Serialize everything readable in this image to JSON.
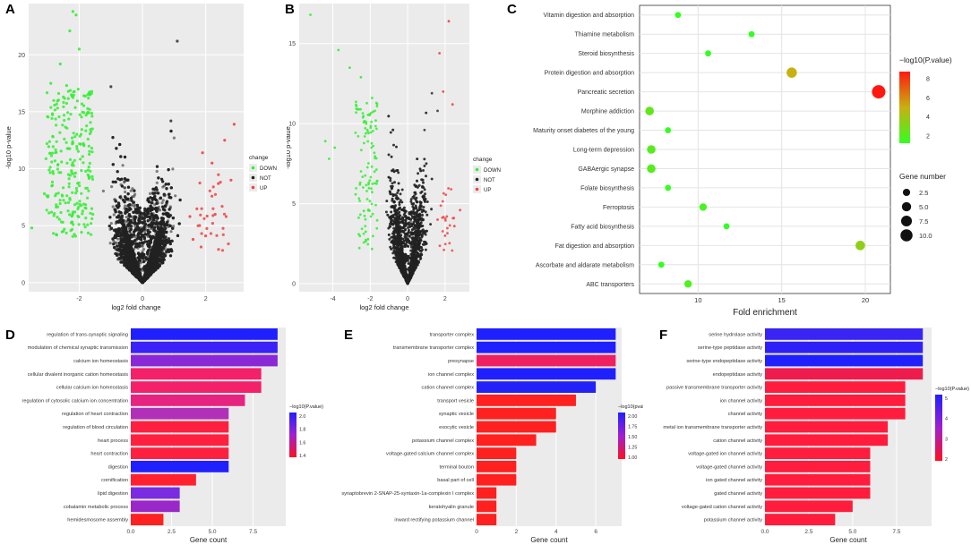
{
  "panels": {
    "A": "A",
    "B": "B",
    "C": "C",
    "D": "D",
    "E": "E",
    "F": "F"
  },
  "colors": {
    "down": "#33ee33",
    "not": "#222222",
    "up": "#ee4444",
    "panel_bg": "#ebebeb",
    "grid": "#ffffff"
  },
  "chart_data": [
    {
      "id": "A",
      "type": "scatter",
      "title": "",
      "xlabel": "log2 fold change",
      "ylabel": "-log10 p-value",
      "xlim": [
        -3.6,
        3.2
      ],
      "ylim": [
        -0.8,
        24.5
      ],
      "xticks": [
        -2,
        0,
        2
      ],
      "yticks": [
        0,
        5,
        10,
        15,
        20
      ],
      "legend": {
        "title": "change",
        "entries": [
          "DOWN",
          "NOT",
          "UP"
        ]
      },
      "n_points": {
        "down": 260,
        "not": 9000,
        "up": 30
      },
      "down_outliers": [
        [
          -2.2,
          23.8
        ],
        [
          -2.1,
          23.5
        ],
        [
          -2.3,
          22.1
        ],
        [
          -2.0,
          20.5
        ],
        [
          -2.6,
          19.2
        ],
        [
          -3.5,
          4.8
        ],
        [
          -3.1,
          7.8
        ],
        [
          -2.9,
          17.5
        ],
        [
          -2.4,
          17.3
        ]
      ],
      "not_outliers": [
        [
          1.1,
          21.2
        ],
        [
          -1.0,
          17.2
        ],
        [
          0.9,
          14.2
        ]
      ],
      "up_outliers": [
        [
          2.9,
          13.9
        ],
        [
          2.6,
          12.5
        ],
        [
          1.9,
          11.4
        ],
        [
          2.2,
          10.5
        ],
        [
          2.4,
          8.7
        ],
        [
          2.8,
          9.0
        ],
        [
          1.5,
          5.8
        ],
        [
          1.6,
          3.8
        ],
        [
          2.0,
          4.1
        ],
        [
          2.3,
          6.0
        ]
      ]
    },
    {
      "id": "B",
      "type": "scatter",
      "title": "",
      "xlabel": "log2 fold change",
      "ylabel": "-log10 p-value",
      "xlim": [
        -5.8,
        3.3
      ],
      "ylim": [
        -0.5,
        17.5
      ],
      "xticks": [
        -4,
        -2,
        0,
        2
      ],
      "yticks": [
        0,
        5,
        10,
        15
      ],
      "legend": {
        "title": "change",
        "entries": [
          "DOWN",
          "NOT",
          "UP"
        ]
      },
      "n_points": {
        "down": 110,
        "not": 5500,
        "up": 22
      },
      "down_outliers": [
        [
          -5.2,
          16.8
        ],
        [
          -3.7,
          14.6
        ],
        [
          -3.1,
          13.5
        ],
        [
          -2.5,
          12.9
        ],
        [
          -4.4,
          8.9
        ],
        [
          -4.2,
          7.8
        ],
        [
          -3.9,
          8.5
        ],
        [
          -1.9,
          11.6
        ]
      ],
      "not_outliers": [
        [
          1.3,
          11.9
        ],
        [
          1.6,
          10.8
        ],
        [
          0.9,
          9.6
        ]
      ],
      "up_outliers": [
        [
          2.2,
          16.4
        ],
        [
          1.7,
          14.4
        ],
        [
          1.9,
          12.0
        ],
        [
          2.4,
          11.2
        ],
        [
          2.8,
          4.6
        ],
        [
          2.5,
          3.6
        ],
        [
          2.0,
          3.0
        ],
        [
          1.6,
          4.0
        ]
      ]
    },
    {
      "id": "C",
      "type": "scatter",
      "title": "",
      "xlabel": "Fold enrichment",
      "ylabel": "",
      "xlim": [
        6.5,
        21.5
      ],
      "xticks": [
        10,
        15,
        20
      ],
      "categories": [
        "Vitamin digestion and absorption",
        "Thiamine metabolism",
        "Steroid biosynthesis",
        "Protein digestion and absorption",
        "Pancreatic secretion",
        "Morphine addiction",
        "Maturity onset diabetes of the young",
        "Long-term depression",
        "GABAergic synapse",
        "Folate biosynthesis",
        "Ferroptosis",
        "Fatty acid biosynthesis",
        "Fat digestion and absorption",
        "Ascorbate and aldarate metabolism",
        "ABC transporters"
      ],
      "x": [
        8.8,
        13.2,
        10.6,
        15.6,
        20.8,
        7.1,
        8.2,
        7.2,
        7.2,
        8.2,
        10.3,
        11.7,
        19.7,
        7.8,
        9.4
      ],
      "gene_number": [
        1,
        1,
        1,
        5,
        10,
        3,
        1,
        3,
        3,
        1,
        2,
        1,
        4,
        1,
        2
      ],
      "neg_log10_p": [
        0.5,
        0.5,
        0.5,
        4.5,
        8.5,
        1.8,
        0.5,
        1.5,
        1.5,
        0.5,
        1.0,
        0.5,
        3.0,
        0.5,
        1.2
      ],
      "color_legend": {
        "title": "−log10(P.value)",
        "ticks": [
          "8",
          "6",
          "4",
          "2"
        ]
      },
      "size_legend": {
        "title": "Gene number",
        "entries": [
          "2.5",
          "5.0",
          "7.5",
          "10.0"
        ]
      }
    },
    {
      "id": "D",
      "type": "bar",
      "orientation": "horizontal",
      "xlabel": "Gene count",
      "xlim": [
        0,
        9.5
      ],
      "xticks": [
        "0.0",
        "2.5",
        "5.0",
        "7.5"
      ],
      "categories": [
        "regulation of trans-synaptic signaling",
        "modulation of chemical synaptic transmission",
        "calcium ion homeostasis",
        "cellular divalent inorganic cation homeostasis",
        "cellular calcium ion homeostasis",
        "regulation of cytosolic calcium ion concentration",
        "regulation of heart contraction",
        "regulation of blood circulation",
        "heart process",
        "heart contraction",
        "digestion",
        "cornification",
        "lipid digestion",
        "cobalamin metabolic process",
        "hemidesmosome assembly"
      ],
      "values": [
        9,
        9,
        9,
        8,
        8,
        7,
        6,
        6,
        6,
        6,
        6,
        4,
        3,
        3,
        2
      ],
      "colors": [
        "#2020ff",
        "#3a22f8",
        "#8a28d8",
        "#f4206a",
        "#f4206a",
        "#e62480",
        "#b030b8",
        "#ff2040",
        "#ff2040",
        "#ff2040",
        "#2020ff",
        "#ff2030",
        "#7a2ce0",
        "#9a28c8",
        "#ff2020"
      ],
      "legend": {
        "title": "−log10(P.value)",
        "ticks": [
          "2.0",
          "1.8",
          "1.6",
          "1.4"
        ]
      }
    },
    {
      "id": "E",
      "type": "bar",
      "orientation": "horizontal",
      "xlabel": "Gene count",
      "xlim": [
        0,
        7.3
      ],
      "xticks": [
        "0",
        "2",
        "4",
        "6"
      ],
      "categories": [
        "transporter complex",
        "transmembrane transporter complex",
        "presynapse",
        "ion channel complex",
        "cation channel complex",
        "transport vesicle",
        "synaptic vesicle",
        "exocytic vesicle",
        "potassium channel complex",
        "voltage-gated calcium channel complex",
        "terminal bouton",
        "basal part of cell",
        "synaptobrevin 2-SNAP-25-syntaxin-1a-complexin I complex",
        "keratohyalin granule",
        "inward rectifying potassium channel"
      ],
      "values": [
        7,
        7,
        7,
        7,
        6,
        5,
        4,
        4,
        3,
        2,
        2,
        2,
        1,
        1,
        1
      ],
      "colors": [
        "#2020ff",
        "#2020ff",
        "#ee2060",
        "#2020ff",
        "#2222f8",
        "#ff2020",
        "#ff2020",
        "#ff2020",
        "#ff2020",
        "#ff2020",
        "#ff2020",
        "#ff2020",
        "#ff2020",
        "#ff2020",
        "#ff2020"
      ],
      "legend": {
        "title": "−log10(pvalue)",
        "ticks": [
          "2.00",
          "1.75",
          "1.50",
          "1.25",
          "1.00"
        ]
      }
    },
    {
      "id": "F",
      "type": "bar",
      "orientation": "horizontal",
      "xlabel": "Gene count",
      "xlim": [
        0,
        9.5
      ],
      "xticks": [
        "0.0",
        "2.5",
        "5.0",
        "7.5"
      ],
      "categories": [
        "serine hydrolase activity",
        "serine-type peptidase activity",
        "serine-type endopeptidase activity",
        "endopeptidase activity",
        "passive transmembrane transporter activity",
        "ion channel activity",
        "channel activity",
        "metal ion transmembrane transporter activity",
        "cation channel activity",
        "voltage-gated ion channel activity",
        "voltage-gated channel activity",
        "ion gated channel activity",
        "gated channel activity",
        "voltage-gated cation channel activity",
        "potassium channel activity"
      ],
      "values": [
        9,
        9,
        9,
        9,
        8,
        8,
        8,
        7,
        7,
        6,
        6,
        6,
        6,
        5,
        4
      ],
      "colors": [
        "#3a24f4",
        "#3020f8",
        "#2020ff",
        "#ee1c4c",
        "#ff1c3c",
        "#ff1c3c",
        "#ff1c3c",
        "#ff1c3c",
        "#ff1c3c",
        "#ff1c3c",
        "#ff1c3c",
        "#ff1c3c",
        "#ff1c3c",
        "#ff1c3c",
        "#ff1c3c"
      ],
      "legend": {
        "title": "−log10(P.value)",
        "ticks": [
          "5",
          "4",
          "3",
          "2"
        ]
      }
    }
  ]
}
